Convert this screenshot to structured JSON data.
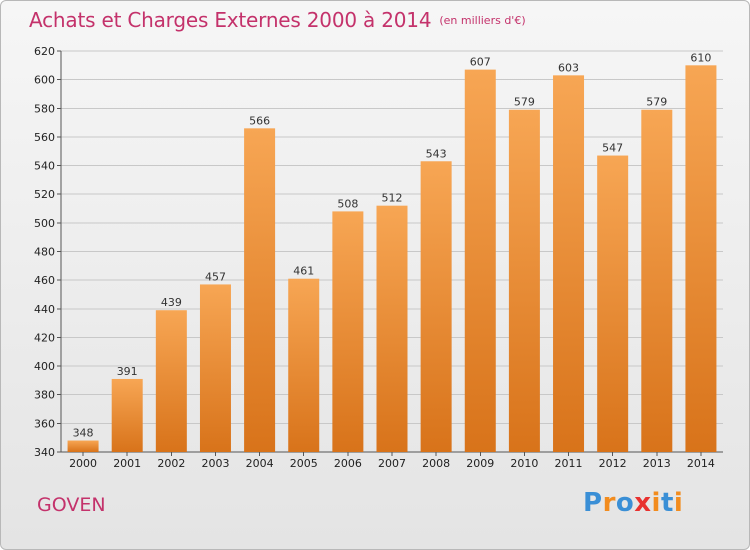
{
  "title": {
    "main": "Achats et Charges Externes 2000 à 2014",
    "unit": "(en milliers d'€)"
  },
  "commune": "GOVEN",
  "logo": {
    "letters": [
      "P",
      "r",
      "o",
      "x",
      "i",
      "t",
      "i"
    ],
    "colors": [
      "#3a8fd6",
      "#f28c1e",
      "#3a8fd6",
      "#e8312f",
      "#f28c1e",
      "#3a8fd6",
      "#f28c1e"
    ]
  },
  "colors": {
    "bar_top": "#f7a654",
    "bar_bottom": "#d8731a",
    "grid": "#c8c8c8",
    "title": "#c4326b"
  },
  "chart_data": {
    "type": "bar",
    "categories": [
      "2000",
      "2001",
      "2002",
      "2003",
      "2004",
      "2005",
      "2006",
      "2007",
      "2008",
      "2009",
      "2010",
      "2011",
      "2012",
      "2013",
      "2014"
    ],
    "values": [
      348,
      391,
      439,
      457,
      566,
      461,
      508,
      512,
      543,
      607,
      579,
      603,
      547,
      579,
      610
    ],
    "ylim": [
      340,
      620
    ],
    "yticks": [
      340,
      360,
      380,
      400,
      420,
      440,
      460,
      480,
      500,
      520,
      540,
      560,
      580,
      600,
      620
    ],
    "grid": true,
    "data_labels": true
  }
}
